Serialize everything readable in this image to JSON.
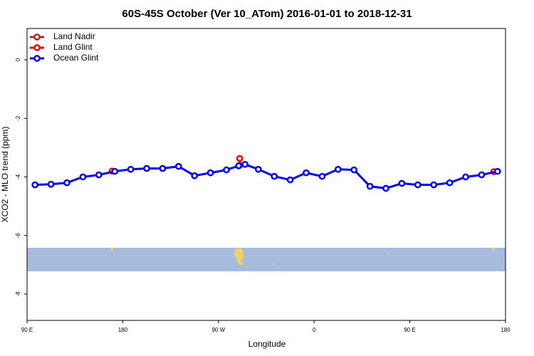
{
  "chart_data": {
    "type": "line",
    "title": "60S-45S October (Ver 10_ATom)   2016-01-01 to 2018-12-31",
    "xlabel": "Longitude",
    "ylabel": "XCO2 - MLO trend (ppm)",
    "xlim": [
      90,
      540
    ],
    "ylim": [
      -8.9,
      1.07
    ],
    "xticks": [
      {
        "value": 90,
        "label": "90 E"
      },
      {
        "value": 180,
        "label": "180"
      },
      {
        "value": 270,
        "label": "90 W"
      },
      {
        "value": 360,
        "label": "0"
      },
      {
        "value": 450,
        "label": "90 E"
      },
      {
        "value": 540,
        "label": "180"
      }
    ],
    "yticks": [
      0,
      -2,
      -4,
      -6,
      -8
    ],
    "legend": "top-left",
    "series": [
      {
        "name": "Land Nadir",
        "color": "#a52a2a",
        "x": [],
        "values": []
      },
      {
        "name": "Land Glint",
        "color": "#ff0000",
        "line": false,
        "x": [
          170,
          290,
          290,
          529
        ],
        "values": [
          -3.8,
          -3.37,
          -3.6,
          -3.82
        ]
      },
      {
        "name": "Ocean Glint",
        "color": "#0000ff",
        "line": true,
        "x": [
          97.5,
          112.5,
          127.5,
          142.5,
          157.5,
          172.5,
          187.5,
          202.5,
          217.5,
          232.5,
          247.5,
          262.5,
          277.5,
          289,
          295,
          307.5,
          322.5,
          337.5,
          352.5,
          367.5,
          382.5,
          397.5,
          412.5,
          427.5,
          442.5,
          457.5,
          472.5,
          487.5,
          502.5,
          517.5,
          532.5
        ],
        "values": [
          -4.27,
          -4.25,
          -4.2,
          -4.0,
          -3.93,
          -3.81,
          -3.74,
          -3.71,
          -3.71,
          -3.64,
          -3.96,
          -3.86,
          -3.76,
          -3.62,
          -3.57,
          -3.74,
          -3.98,
          -4.1,
          -3.86,
          -3.98,
          -3.74,
          -3.76,
          -4.32,
          -4.39,
          -4.22,
          -4.27,
          -4.27,
          -4.2,
          -4.0,
          -3.93,
          -3.81
        ]
      }
    ]
  }
}
